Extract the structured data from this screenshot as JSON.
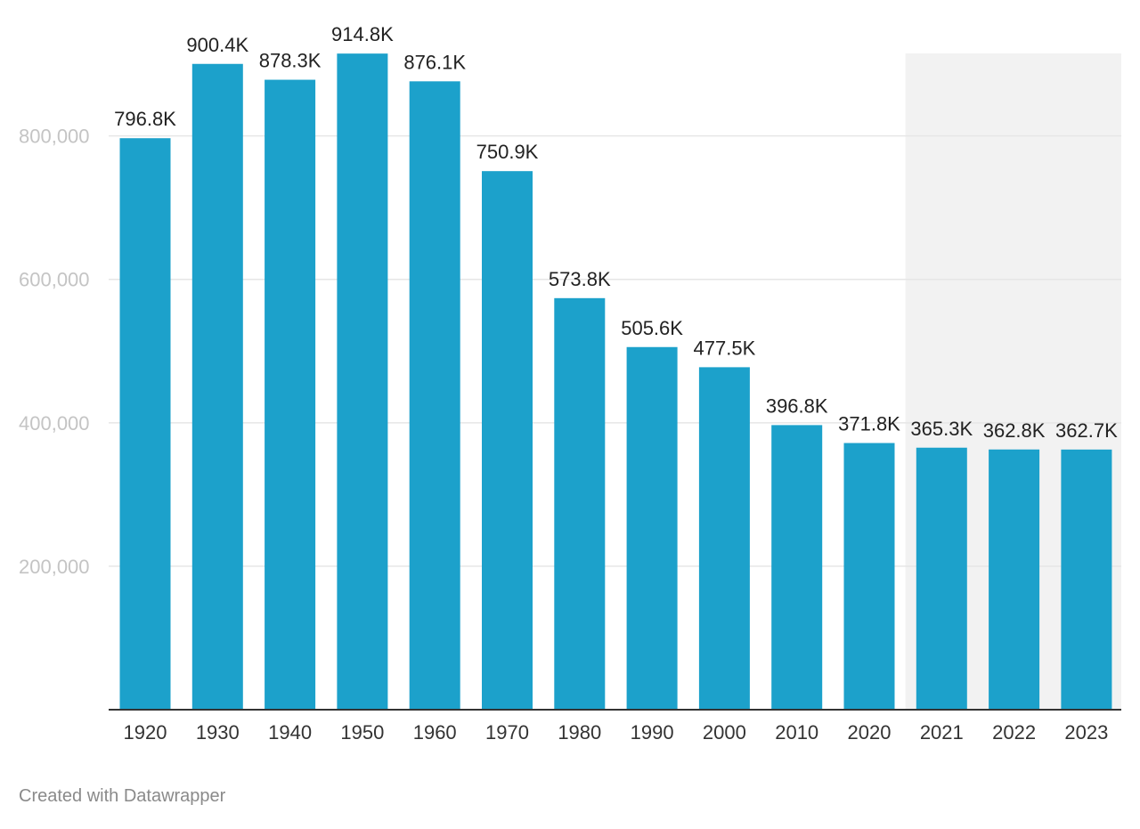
{
  "chart_data": {
    "type": "bar",
    "categories": [
      "1920",
      "1930",
      "1940",
      "1950",
      "1960",
      "1970",
      "1980",
      "1990",
      "2000",
      "2010",
      "2020",
      "2021",
      "2022",
      "2023"
    ],
    "values": [
      796800,
      900400,
      878300,
      914800,
      876100,
      750900,
      573800,
      505600,
      477500,
      396800,
      371800,
      365300,
      362800,
      362700
    ],
    "data_labels": [
      "796.8K",
      "900.4K",
      "878.3K",
      "914.8K",
      "876.1K",
      "750.9K",
      "573.8K",
      "505.6K",
      "477.5K",
      "396.8K",
      "371.8K",
      "365.3K",
      "362.8K",
      "362.7K"
    ],
    "y_ticks": [
      200000,
      400000,
      600000,
      800000
    ],
    "y_tick_labels": [
      "200,000",
      "400,000",
      "600,000",
      "800,000"
    ],
    "ylim": [
      0,
      915000
    ],
    "grid": true,
    "highlight_range": [
      "2021",
      "2023"
    ],
    "title": "",
    "xlabel": "",
    "ylabel": ""
  },
  "colors": {
    "bar": "#1ca1cb",
    "highlight_band": "#f2f2f2",
    "grid": "#e6e6e6",
    "axis": "#333333"
  },
  "footer": {
    "credit": "Created with Datawrapper"
  }
}
